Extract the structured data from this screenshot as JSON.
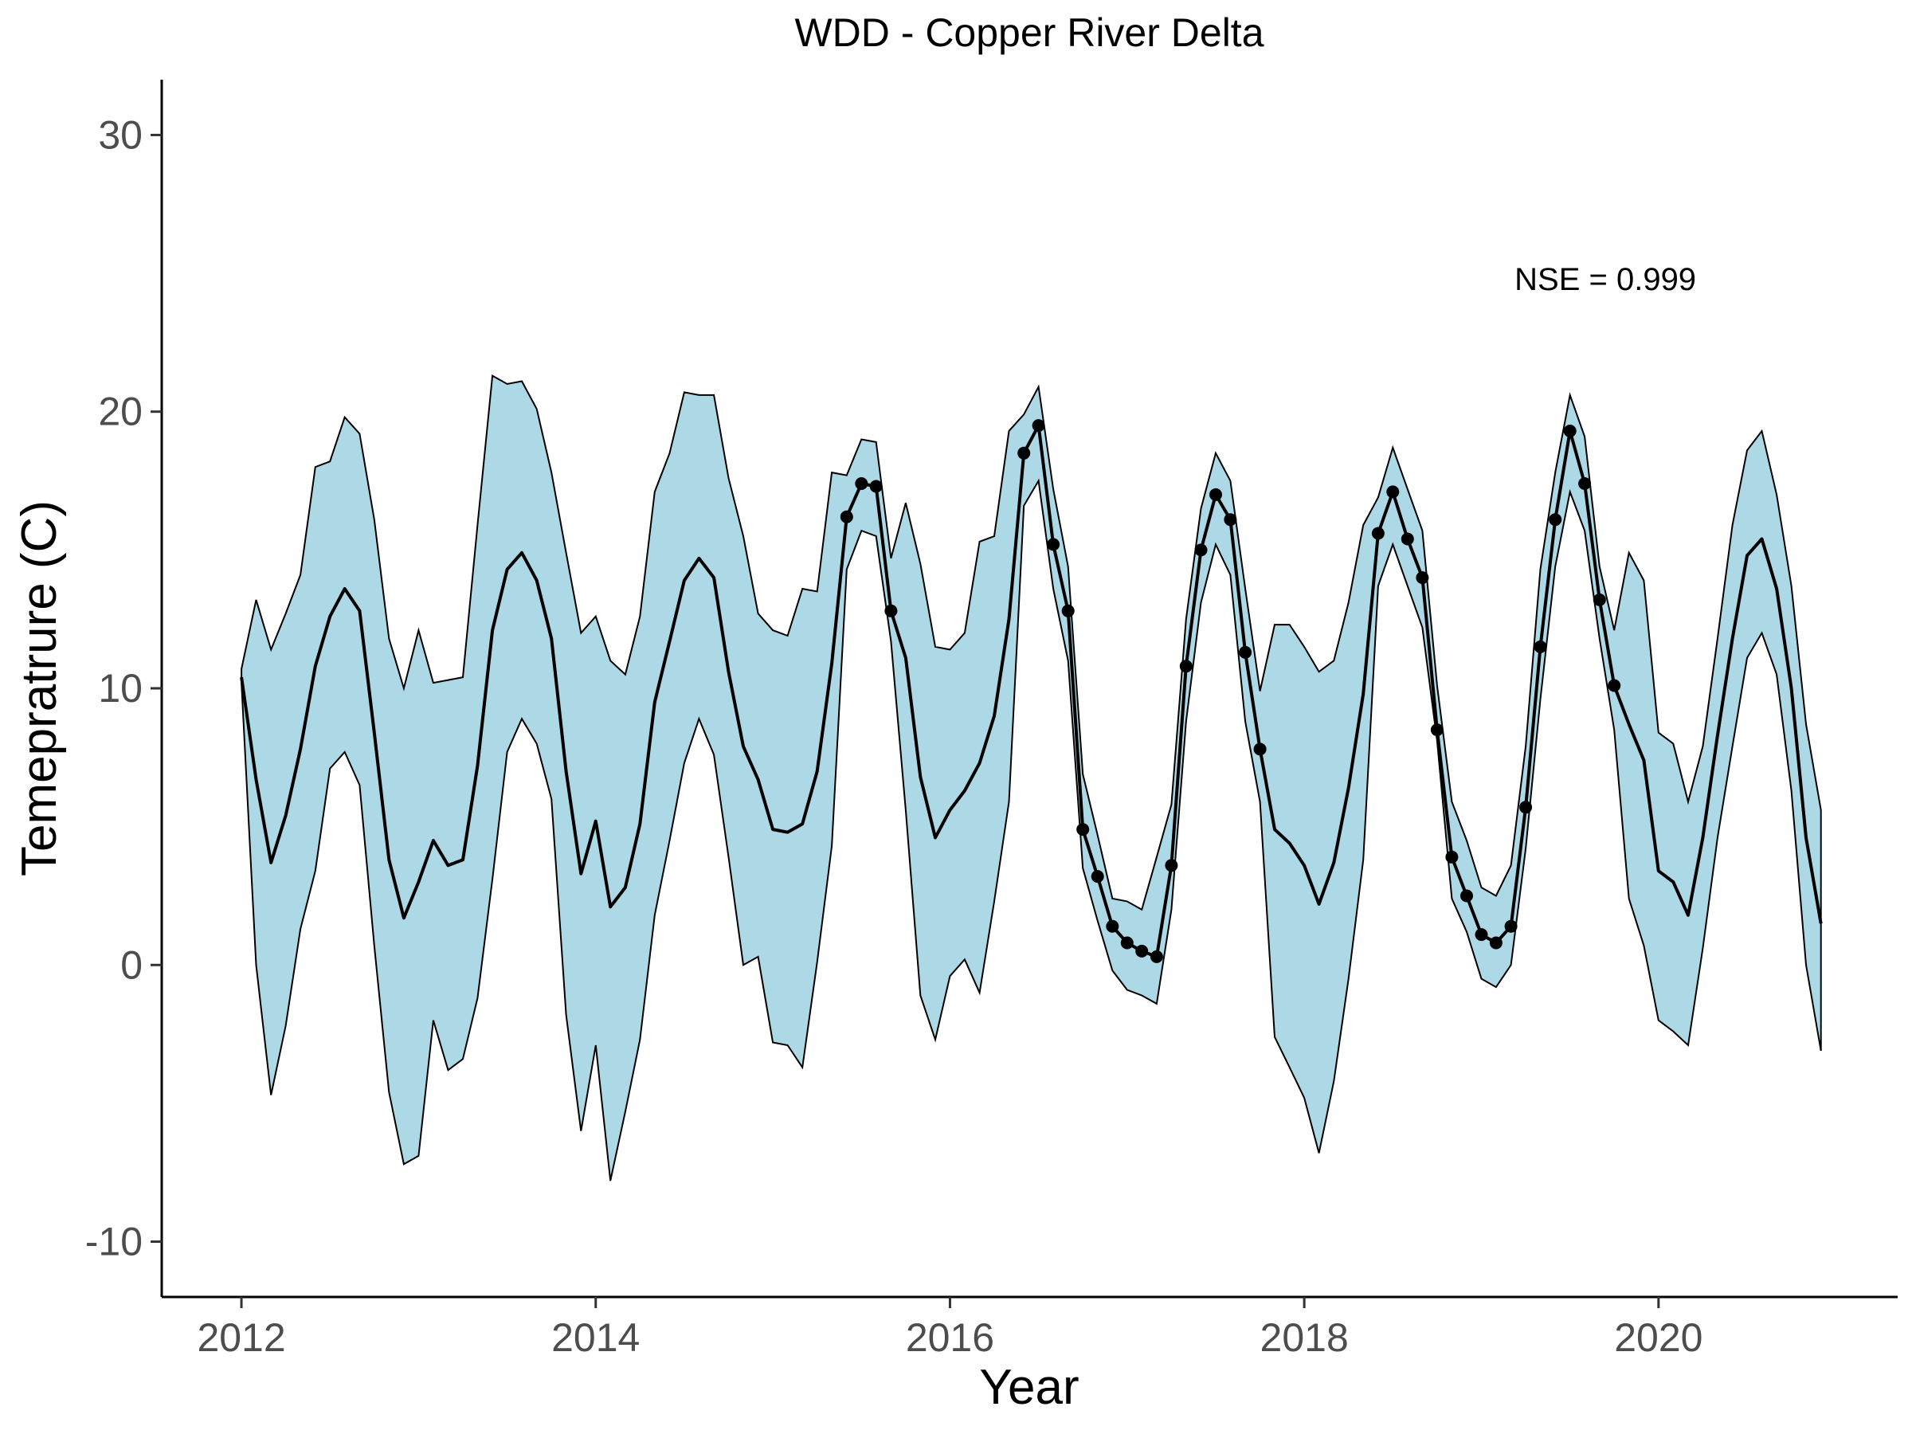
{
  "chart_data": {
    "type": "line",
    "title": "WDD - Copper River Delta",
    "xlabel": "Year",
    "ylabel": "Temepratrure (C)",
    "xlim": [
      2011.55,
      2021.35
    ],
    "ylim": [
      -12.0,
      32.0
    ],
    "x_ticks": [
      2012,
      2014,
      2016,
      2018,
      2020
    ],
    "x_tick_labels": [
      "2012",
      "2014",
      "2016",
      "2018",
      "2020"
    ],
    "y_ticks": [
      -10,
      0,
      10,
      20,
      30
    ],
    "y_tick_labels": [
      "-10",
      "0",
      "10",
      "20",
      "30"
    ],
    "grid": false,
    "legend": "none",
    "annotation": {
      "text": "NSE = 0.999",
      "x": 2019.7,
      "y": 24.8
    },
    "ribbon_color": "#ADD8E6",
    "line_color": "#000000",
    "series": [
      {
        "type": "ribbon",
        "x": [
          2012.0,
          2012.083,
          2012.167,
          2012.25,
          2012.333,
          2012.417,
          2012.5,
          2012.583,
          2012.667,
          2012.75,
          2012.833,
          2012.917,
          2013.0,
          2013.083,
          2013.167,
          2013.25,
          2013.333,
          2013.417,
          2013.5,
          2013.583,
          2013.667,
          2013.75,
          2013.833,
          2013.917,
          2014.0,
          2014.083,
          2014.167,
          2014.25,
          2014.333,
          2014.417,
          2014.5,
          2014.583,
          2014.667,
          2014.75,
          2014.833,
          2014.917,
          2015.0,
          2015.083,
          2015.167,
          2015.25,
          2015.333,
          2015.417,
          2015.5,
          2015.583,
          2015.667,
          2015.75,
          2015.833,
          2015.917,
          2016.0,
          2016.083,
          2016.167,
          2016.25,
          2016.333,
          2016.417,
          2016.5,
          2016.583,
          2016.667,
          2016.75,
          2016.833,
          2016.917,
          2017.0,
          2017.083,
          2017.167,
          2017.25,
          2017.333,
          2017.417,
          2017.5,
          2017.583,
          2017.667,
          2017.75,
          2017.833,
          2017.917,
          2018.0,
          2018.083,
          2018.167,
          2018.25,
          2018.333,
          2018.417,
          2018.5,
          2018.583,
          2018.667,
          2018.75,
          2018.833,
          2018.917,
          2019.0,
          2019.083,
          2019.167,
          2019.25,
          2019.333,
          2019.417,
          2019.5,
          2019.583,
          2019.667,
          2019.75,
          2019.833,
          2019.917,
          2020.0,
          2020.083,
          2020.167,
          2020.25,
          2020.333,
          2020.417,
          2020.5,
          2020.583,
          2020.667,
          2020.75,
          2020.833,
          2020.917
        ],
        "upper": [
          10.7,
          13.2,
          11.4,
          12.7,
          14.1,
          18.0,
          18.2,
          19.8,
          19.2,
          16.1,
          11.8,
          10.0,
          12.1,
          10.2,
          10.3,
          10.4,
          15.9,
          21.3,
          21.0,
          21.1,
          20.1,
          17.8,
          14.9,
          12.0,
          12.6,
          11.0,
          10.5,
          12.6,
          17.1,
          18.5,
          20.7,
          20.6,
          20.6,
          17.6,
          15.5,
          12.7,
          12.1,
          11.9,
          13.6,
          13.5,
          17.8,
          17.7,
          19.0,
          18.9,
          14.7,
          16.7,
          14.5,
          11.5,
          11.4,
          12.0,
          15.3,
          15.5,
          19.3,
          19.9,
          20.9,
          17.2,
          14.4,
          6.9,
          4.7,
          2.4,
          2.3,
          2.0,
          3.9,
          5.8,
          12.5,
          16.5,
          18.5,
          17.5,
          13.6,
          9.9,
          12.3,
          12.3,
          11.5,
          10.6,
          11.0,
          13.1,
          15.9,
          16.9,
          18.7,
          17.2,
          15.7,
          10.1,
          5.9,
          4.5,
          2.8,
          2.5,
          3.6,
          7.9,
          14.3,
          17.8,
          20.6,
          19.1,
          14.4,
          12.1,
          14.9,
          13.9,
          8.4,
          8.0,
          5.9,
          7.9,
          11.8,
          15.9,
          18.6,
          19.3,
          17.0,
          13.7,
          8.7,
          5.6
        ],
        "lower": [
          10.2,
          0.0,
          -4.7,
          -2.2,
          1.3,
          3.4,
          7.1,
          7.7,
          6.5,
          0.7,
          -4.6,
          -7.2,
          -6.9,
          -2.0,
          -3.8,
          -3.4,
          -1.2,
          3.1,
          7.7,
          8.9,
          8.0,
          6.0,
          -1.8,
          -6.0,
          -2.9,
          -7.8,
          -5.3,
          -2.7,
          1.8,
          4.5,
          7.3,
          8.9,
          7.6,
          3.9,
          0.0,
          0.3,
          -2.8,
          -2.9,
          -3.7,
          0.1,
          4.3,
          14.3,
          15.7,
          15.5,
          11.7,
          5.6,
          -1.1,
          -2.7,
          -0.4,
          0.2,
          -1.0,
          2.3,
          5.9,
          16.6,
          17.5,
          13.6,
          11.0,
          3.5,
          1.6,
          -0.2,
          -0.9,
          -1.1,
          -1.4,
          2.0,
          8.8,
          13.1,
          15.2,
          14.1,
          8.8,
          5.9,
          -2.6,
          -3.7,
          -4.8,
          -6.8,
          -4.2,
          -0.5,
          3.8,
          13.7,
          15.2,
          13.7,
          12.2,
          8.1,
          2.4,
          1.2,
          -0.5,
          -0.8,
          0.0,
          4.2,
          9.6,
          14.4,
          17.1,
          15.7,
          11.8,
          8.5,
          2.4,
          0.7,
          -2.0,
          -2.4,
          -2.9,
          0.6,
          4.6,
          7.9,
          11.1,
          12.0,
          10.5,
          6.3,
          0.0,
          -3.1
        ]
      },
      {
        "type": "line",
        "x": [
          2012.0,
          2012.083,
          2012.167,
          2012.25,
          2012.333,
          2012.417,
          2012.5,
          2012.583,
          2012.667,
          2012.75,
          2012.833,
          2012.917,
          2013.0,
          2013.083,
          2013.167,
          2013.25,
          2013.333,
          2013.417,
          2013.5,
          2013.583,
          2013.667,
          2013.75,
          2013.833,
          2013.917,
          2014.0,
          2014.083,
          2014.167,
          2014.25,
          2014.333,
          2014.417,
          2014.5,
          2014.583,
          2014.667,
          2014.75,
          2014.833,
          2014.917,
          2015.0,
          2015.083,
          2015.167,
          2015.25,
          2015.333,
          2015.417,
          2015.5,
          2015.583,
          2015.667,
          2015.75,
          2015.833,
          2015.917,
          2016.0,
          2016.083,
          2016.167,
          2016.25,
          2016.333,
          2016.417,
          2016.5,
          2016.583,
          2016.667,
          2016.75,
          2016.833,
          2016.917,
          2017.0,
          2017.083,
          2017.167,
          2017.25,
          2017.333,
          2017.417,
          2017.5,
          2017.583,
          2017.667,
          2017.75,
          2017.833,
          2017.917,
          2018.0,
          2018.083,
          2018.167,
          2018.25,
          2018.333,
          2018.417,
          2018.5,
          2018.583,
          2018.667,
          2018.75,
          2018.833,
          2018.917,
          2019.0,
          2019.083,
          2019.167,
          2019.25,
          2019.333,
          2019.417,
          2019.5,
          2019.583,
          2019.667,
          2019.75,
          2019.833,
          2019.917,
          2020.0,
          2020.083,
          2020.167,
          2020.25,
          2020.333,
          2020.417,
          2020.5,
          2020.583,
          2020.667,
          2020.75,
          2020.833,
          2020.917
        ],
        "values": [
          10.4,
          6.7,
          3.7,
          5.4,
          7.8,
          10.8,
          12.6,
          13.6,
          12.8,
          8.4,
          3.8,
          1.7,
          3.0,
          4.5,
          3.6,
          3.8,
          7.2,
          12.1,
          14.3,
          14.9,
          13.9,
          11.8,
          7.0,
          3.3,
          5.2,
          2.1,
          2.8,
          5.1,
          9.5,
          11.7,
          13.9,
          14.7,
          14.0,
          10.6,
          7.9,
          6.7,
          4.9,
          4.8,
          5.1,
          7.0,
          10.9,
          16.2,
          17.4,
          17.3,
          12.8,
          11.1,
          6.8,
          4.6,
          5.6,
          6.3,
          7.3,
          9.0,
          12.5,
          18.5,
          19.5,
          15.2,
          12.8,
          4.9,
          3.2,
          1.4,
          0.8,
          0.5,
          0.3,
          3.6,
          10.8,
          15.0,
          17.0,
          16.1,
          11.3,
          7.8,
          4.9,
          4.4,
          3.6,
          2.2,
          3.7,
          6.4,
          9.8,
          15.6,
          17.1,
          15.4,
          14.0,
          8.5,
          3.9,
          2.5,
          1.1,
          0.8,
          1.4,
          5.7,
          11.5,
          16.1,
          19.3,
          17.4,
          13.2,
          10.1,
          8.7,
          7.4,
          3.4,
          3.0,
          1.8,
          4.6,
          8.3,
          11.8,
          14.8,
          15.4,
          13.6,
          10.0,
          4.6,
          1.5
        ]
      },
      {
        "type": "scatter",
        "x": [
          2015.417,
          2015.5,
          2015.583,
          2015.667,
          2016.417,
          2016.5,
          2016.583,
          2016.667,
          2016.75,
          2016.833,
          2016.917,
          2017.0,
          2017.083,
          2017.167,
          2017.25,
          2017.333,
          2017.417,
          2017.5,
          2017.583,
          2017.667,
          2017.75,
          2018.417,
          2018.5,
          2018.583,
          2018.667,
          2018.75,
          2018.833,
          2018.917,
          2019.0,
          2019.083,
          2019.167,
          2019.25,
          2019.333,
          2019.417,
          2019.5,
          2019.583,
          2019.667,
          2019.75
        ],
        "values": [
          16.2,
          17.4,
          17.3,
          12.8,
          18.5,
          19.5,
          15.2,
          12.8,
          4.9,
          3.2,
          1.4,
          0.8,
          0.5,
          0.3,
          3.6,
          10.8,
          15.0,
          17.0,
          16.1,
          11.3,
          7.8,
          15.6,
          17.1,
          15.4,
          14.0,
          8.5,
          3.9,
          2.5,
          1.1,
          0.8,
          1.4,
          5.7,
          11.5,
          16.1,
          19.3,
          17.4,
          13.2,
          10.1
        ]
      }
    ]
  }
}
